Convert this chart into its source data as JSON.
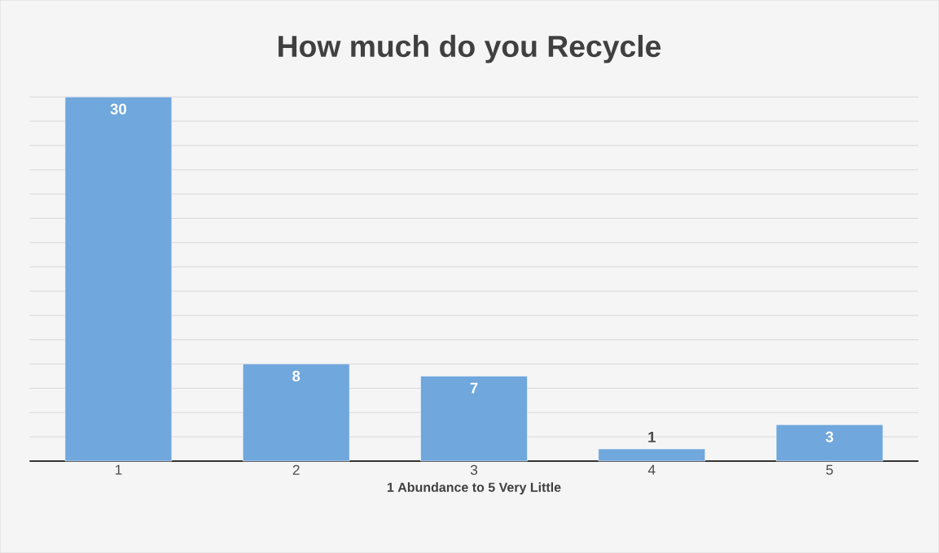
{
  "chart_data": {
    "type": "bar",
    "title": "How much do you Recycle",
    "xlabel": "1 Abundance to 5 Very Little",
    "categories": [
      "1",
      "2",
      "3",
      "4",
      "5"
    ],
    "values": [
      30,
      8,
      7,
      1,
      3
    ],
    "color": "#70a7dc",
    "grid": "y",
    "tick_labels": "x",
    "data_labels": true
  }
}
